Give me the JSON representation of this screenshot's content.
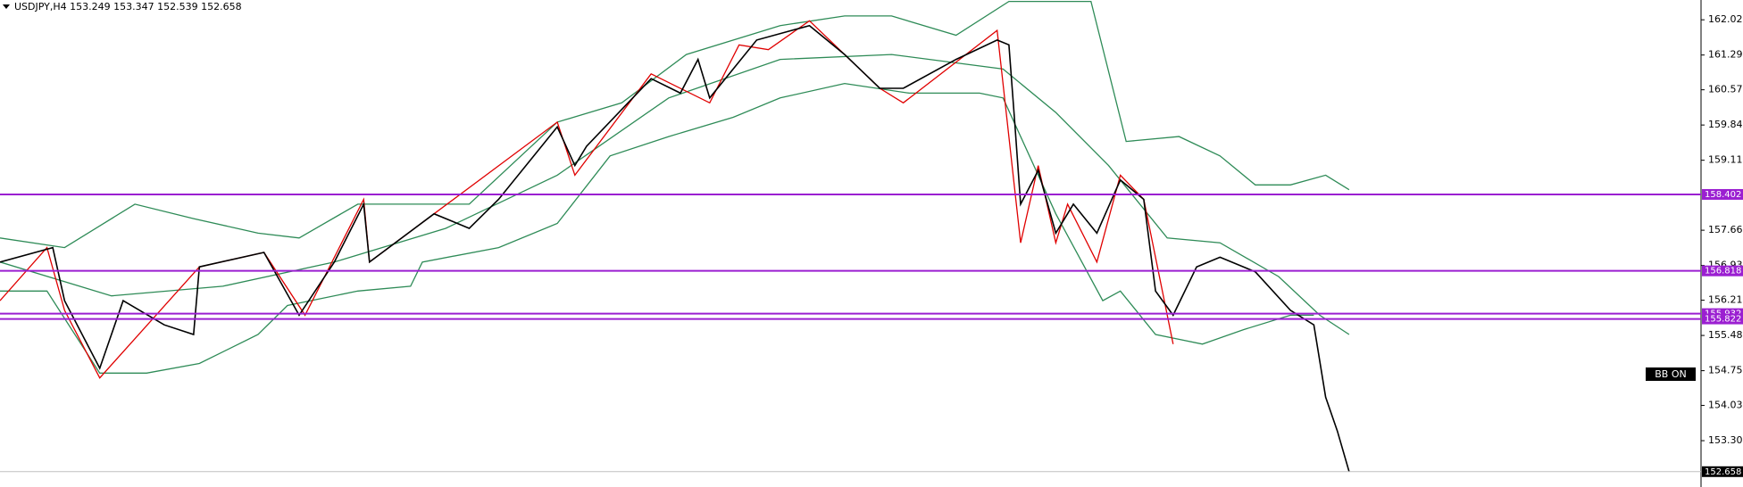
{
  "chart_data": {
    "type": "line",
    "title": "USDJPY,H4  153.249 153.347 152.539 152.658",
    "badge": "BB ON",
    "xlim": [
      0,
      290
    ],
    "ylim": [
      152.34,
      162.43
    ],
    "yticks": [
      {
        "value": 162.02,
        "label": "162.020"
      },
      {
        "value": 161.29,
        "label": "161.290"
      },
      {
        "value": 160.57,
        "label": "160.570"
      },
      {
        "value": 159.84,
        "label": "159.840"
      },
      {
        "value": 159.11,
        "label": "159.110"
      },
      {
        "value": 157.66,
        "label": "157.660"
      },
      {
        "value": 156.93,
        "label": "156.930"
      },
      {
        "value": 156.21,
        "label": "156.210"
      },
      {
        "value": 155.48,
        "label": "155.480"
      },
      {
        "value": 154.75,
        "label": "154.750"
      },
      {
        "value": 154.03,
        "label": "154.030"
      },
      {
        "value": 153.3,
        "label": "153.300"
      }
    ],
    "levels": [
      {
        "value": 158.402,
        "color": "#9b1fd1"
      },
      {
        "value": 156.818,
        "color": "#9b1fd1"
      },
      {
        "value": 155.932,
        "color": "#9b1fd1"
      },
      {
        "value": 155.822,
        "color": "#9b1fd1"
      }
    ],
    "last_price": 152.658,
    "series": [
      {
        "name": "Upper Band",
        "color": "#2e8b57",
        "x": [
          0,
          11,
          23,
          33,
          44,
          51,
          61,
          80,
          95,
          106,
          117,
          133,
          144,
          152,
          163,
          172,
          186,
          192,
          201,
          208,
          214,
          220,
          226,
          230
        ],
        "values": [
          157.5,
          157.3,
          158.2,
          157.9,
          157.6,
          157.5,
          158.2,
          158.2,
          159.9,
          160.3,
          161.3,
          161.9,
          162.1,
          162.1,
          161.7,
          162.4,
          162.4,
          159.5,
          159.6,
          159.2,
          158.6,
          158.6,
          158.8,
          158.5
        ]
      },
      {
        "name": "Middle Band",
        "color": "#2e8b57",
        "x": [
          0,
          19,
          38,
          57,
          76,
          95,
          114,
          133,
          152,
          171,
          180,
          189,
          199,
          208,
          218,
          225,
          230
        ],
        "values": [
          157.0,
          156.3,
          156.5,
          157.0,
          157.7,
          158.8,
          160.4,
          161.2,
          161.3,
          161.0,
          160.1,
          159.0,
          157.5,
          157.4,
          156.7,
          155.9,
          155.5
        ]
      },
      {
        "name": "Lower Band",
        "color": "#2e8b57",
        "x": [
          0,
          8,
          17,
          25,
          34,
          44,
          49,
          61,
          70,
          72,
          85,
          95,
          104,
          114,
          125,
          133,
          144,
          155,
          167,
          171,
          180,
          188,
          191,
          197,
          205,
          212,
          220,
          224
        ],
        "values": [
          156.4,
          156.4,
          154.7,
          154.7,
          154.9,
          155.5,
          156.1,
          156.4,
          156.5,
          157.0,
          157.3,
          157.8,
          159.2,
          159.6,
          160.0,
          160.4,
          160.7,
          160.5,
          160.5,
          160.4,
          158.0,
          156.2,
          156.4,
          155.5,
          155.3,
          155.6,
          155.9,
          155.9
        ]
      },
      {
        "name": "ZigZag",
        "color": "#e00000",
        "x": [
          0,
          8,
          11,
          17,
          34,
          45,
          52,
          62,
          63,
          74,
          95,
          98,
          111,
          121,
          126,
          131,
          138,
          150,
          154,
          170,
          174,
          177,
          180,
          182,
          187,
          191,
          195,
          200
        ],
        "values": [
          156.2,
          157.3,
          156.0,
          154.6,
          156.9,
          157.2,
          155.9,
          158.3,
          157.0,
          158.0,
          159.9,
          158.8,
          160.9,
          160.3,
          161.5,
          161.4,
          162.0,
          160.6,
          160.3,
          161.8,
          157.4,
          159.0,
          157.4,
          158.2,
          157.0,
          158.8,
          158.3,
          155.3
        ]
      },
      {
        "name": "Price",
        "color": "#000000",
        "x": [
          0,
          9,
          11,
          17,
          21,
          28,
          33,
          34,
          45,
          51,
          57,
          62,
          63,
          74,
          80,
          85,
          95,
          98,
          100,
          111,
          116,
          119,
          121,
          129,
          138,
          144,
          150,
          154,
          163,
          170,
          172,
          173,
          174,
          177,
          180,
          183,
          187,
          191,
          195,
          197,
          200,
          204,
          208,
          214,
          220,
          224,
          226,
          228,
          230
        ],
        "values": [
          157.0,
          157.3,
          156.2,
          154.8,
          156.2,
          155.7,
          155.5,
          156.9,
          157.2,
          155.9,
          157.0,
          158.2,
          157.0,
          158.0,
          157.7,
          158.3,
          159.8,
          159.0,
          159.4,
          160.8,
          160.5,
          161.2,
          160.4,
          161.6,
          161.9,
          161.3,
          160.6,
          160.6,
          161.2,
          161.6,
          161.5,
          159.9,
          158.2,
          158.9,
          157.6,
          158.2,
          157.6,
          158.7,
          158.3,
          156.4,
          155.9,
          156.9,
          157.1,
          156.8,
          156.0,
          155.7,
          154.2,
          153.5,
          152.658
        ]
      }
    ]
  }
}
